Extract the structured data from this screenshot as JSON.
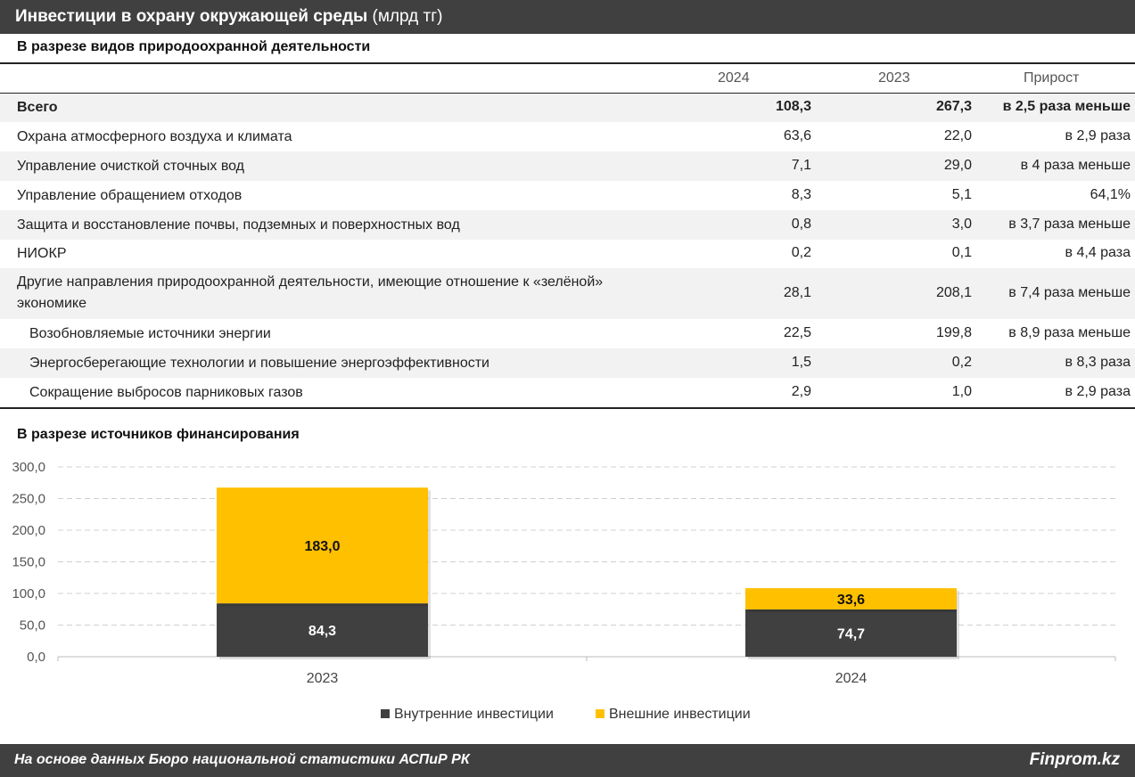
{
  "header": {
    "title": "Инвестиции в охрану окружающей среды",
    "unit": "(млрд тг)"
  },
  "table": {
    "subtitle": "В разрезе видов природоохранной деятельности",
    "columns": [
      "2024",
      "2023",
      "Прирост"
    ],
    "rows": [
      {
        "name": "Всего",
        "v2024": "108,3",
        "v2023": "267,3",
        "growth": "в 2,5 раза меньше"
      },
      {
        "name": "Охрана атмосферного воздуха и климата",
        "v2024": "63,6",
        "v2023": "22,0",
        "growth": "в 2,9 раза"
      },
      {
        "name": "Управление очисткой сточных вод",
        "v2024": "7,1",
        "v2023": "29,0",
        "growth": "в 4 раза меньше"
      },
      {
        "name": "Управление обращением отходов",
        "v2024": "8,3",
        "v2023": "5,1",
        "growth": "64,1%"
      },
      {
        "name": "Защита и восстановление почвы, подземных и поверхностных вод",
        "v2024": "0,8",
        "v2023": "3,0",
        "growth": "в 3,7 раза меньше"
      },
      {
        "name": "НИОКР",
        "v2024": "0,2",
        "v2023": "0,1",
        "growth": "в 4,4 раза"
      },
      {
        "name": "Другие направления природоохранной деятельности, имеющие отношение к «зелёной» экономике",
        "v2024": "28,1",
        "v2023": "208,1",
        "growth": "в 7,4 раза меньше"
      },
      {
        "name": "Возобновляемые источники энергии",
        "v2024": "22,5",
        "v2023": "199,8",
        "growth": "в 8,9 раза меньше"
      },
      {
        "name": "Энергосберегающие технологии и повышение энергоэффективности",
        "v2024": "1,5",
        "v2023": "0,2",
        "growth": "в 8,3 раза"
      },
      {
        "name": "Сокращение выбросов парниковых газов",
        "v2024": "2,9",
        "v2023": "1,0",
        "growth": "в 2,9 раза"
      }
    ]
  },
  "chart_section": {
    "subtitle": "В разрезе источников финансирования"
  },
  "chart_data": {
    "type": "bar",
    "stacked": true,
    "title": "В разрезе источников финансирования",
    "categories": [
      "2023",
      "2024"
    ],
    "series": [
      {
        "name": "Внутренние инвестиции",
        "values": [
          84.3,
          74.7
        ],
        "labels": [
          "84,3",
          "74,7"
        ],
        "color": "#404040"
      },
      {
        "name": "Внешние инвестиции",
        "values": [
          183.0,
          33.6
        ],
        "labels": [
          "183,0",
          "33,6"
        ],
        "color": "#ffc000"
      }
    ],
    "ylim": [
      0,
      300
    ],
    "yticks": [
      "0,0",
      "50,0",
      "100,0",
      "150,0",
      "200,0",
      "250,0",
      "300,0"
    ],
    "grid": true,
    "legend": "bottom"
  },
  "footer": {
    "source": "На основе данных Бюро национальной статистики АСПиР РК",
    "brand": "Finprom.kz"
  }
}
